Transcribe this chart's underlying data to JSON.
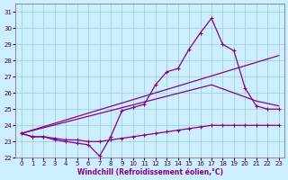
{
  "xlabel": "Windchill (Refroidissement éolien,°C)",
  "xlim": [
    -0.5,
    23.5
  ],
  "ylim": [
    22,
    31.5
  ],
  "yticks": [
    22,
    23,
    24,
    25,
    26,
    27,
    28,
    29,
    30,
    31
  ],
  "xticks": [
    0,
    1,
    2,
    3,
    4,
    5,
    6,
    7,
    8,
    9,
    10,
    11,
    12,
    13,
    14,
    15,
    16,
    17,
    18,
    19,
    20,
    21,
    22,
    23
  ],
  "bg_color": "#cceeff",
  "line_color": "#880088",
  "grid_color": "#99cccc",
  "line1_x": [
    0,
    1,
    2,
    3,
    4,
    5,
    6,
    7,
    8,
    9,
    10,
    11,
    12,
    13,
    14,
    15,
    16,
    17,
    18,
    19,
    20,
    21,
    22,
    23
  ],
  "line1_y": [
    23.5,
    23.3,
    23.3,
    23.1,
    23.0,
    22.9,
    22.8,
    22.1,
    23.3,
    24.9,
    25.1,
    25.3,
    26.5,
    27.3,
    27.5,
    28.7,
    29.7,
    30.6,
    29.0,
    28.6,
    26.3,
    25.2,
    25.0,
    25.0
  ],
  "line2_x": [
    0,
    1,
    2,
    3,
    4,
    5,
    6,
    7,
    8,
    9,
    10,
    11,
    12,
    13,
    14,
    15,
    16,
    17,
    18,
    19,
    20,
    21,
    22,
    23
  ],
  "line2_y": [
    23.5,
    23.3,
    23.3,
    23.2,
    23.1,
    23.1,
    23.0,
    23.0,
    23.1,
    23.2,
    23.3,
    23.4,
    23.5,
    23.6,
    23.7,
    23.8,
    23.9,
    24.0,
    24.0,
    24.0,
    24.0,
    24.0,
    24.0,
    24.0
  ],
  "line3_x": [
    0,
    23
  ],
  "line3_y": [
    23.5,
    28.3
  ],
  "line4_x": [
    0,
    17,
    21,
    23
  ],
  "line4_y": [
    23.5,
    26.5,
    25.5,
    25.2
  ]
}
